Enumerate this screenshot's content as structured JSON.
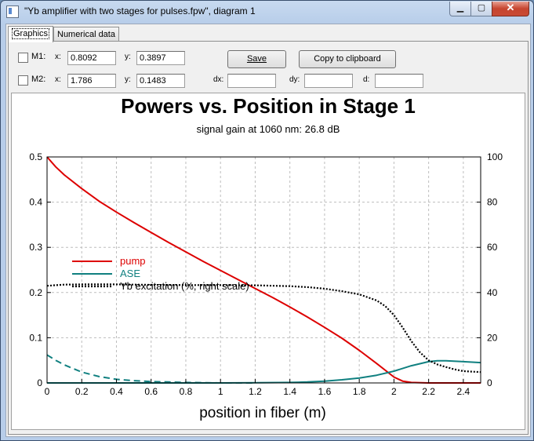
{
  "window": {
    "title": "\"Yb amplifier with two stages for pulses.fpw\", diagram 1",
    "minimize": "▁",
    "maximize": "▢",
    "close": "✕"
  },
  "tabs": [
    {
      "label": "Graphics",
      "active": true
    },
    {
      "label": "Numerical data",
      "active": false
    }
  ],
  "markers": {
    "m1": {
      "label": "M1:",
      "x_label": "x:",
      "x_value": "0.8092",
      "y_label": "y:",
      "y_value": "0.3897",
      "checked": false
    },
    "m2": {
      "label": "M2:",
      "x_label": "x:",
      "x_value": "1.786",
      "y_label": "y:",
      "y_value": "0.1483",
      "checked": false
    },
    "dx_label": "dx:",
    "dx_value": "",
    "dy_label": "dy:",
    "dy_value": "",
    "d_label": "d:",
    "d_value": ""
  },
  "buttons": {
    "save": "Save",
    "copy": "Copy to clipboard"
  },
  "chart_data": {
    "type": "line",
    "title": "Powers vs. Position in Stage 1",
    "subtitle": "signal gain at 1060 nm: 26.8 dB",
    "xlabel": "position in fiber (m)",
    "ylabel": "",
    "ylabel_right": "",
    "xlim": [
      0,
      2.5
    ],
    "ylim": [
      0,
      0.5
    ],
    "ylim_right": [
      0,
      100
    ],
    "x_ticks": [
      0,
      0.2,
      0.4,
      0.6,
      0.8,
      1,
      1.2,
      1.4,
      1.6,
      1.8,
      2,
      2.2,
      2.4
    ],
    "y_ticks": [
      0,
      0.1,
      0.2,
      0.3,
      0.4,
      0.5
    ],
    "y_ticks_right": [
      0,
      20,
      40,
      60,
      80,
      100
    ],
    "grid": true,
    "legend_position": "middle-left",
    "series": [
      {
        "name": "pump",
        "color": "#dd0000",
        "style": "solid",
        "axis": "left",
        "x": [
          0,
          0.05,
          0.1,
          0.2,
          0.3,
          0.4,
          0.5,
          0.6,
          0.7,
          0.8,
          0.9,
          1.0,
          1.1,
          1.2,
          1.3,
          1.4,
          1.5,
          1.6,
          1.7,
          1.8,
          1.9,
          2.0,
          2.05,
          2.1,
          2.2,
          2.3,
          2.4,
          2.5
        ],
        "y": [
          0.5,
          0.478,
          0.46,
          0.43,
          0.402,
          0.378,
          0.355,
          0.333,
          0.311,
          0.29,
          0.269,
          0.249,
          0.229,
          0.209,
          0.189,
          0.168,
          0.146,
          0.123,
          0.099,
          0.072,
          0.043,
          0.013,
          0.004,
          0.001,
          0,
          0,
          0,
          0
        ]
      },
      {
        "name": "ASE",
        "color": "#108080",
        "style": "solid",
        "axis": "left",
        "x": [
          0,
          0.5,
          1.0,
          1.2,
          1.4,
          1.5,
          1.6,
          1.7,
          1.8,
          1.9,
          2.0,
          2.1,
          2.2,
          2.25,
          2.3,
          2.4,
          2.5
        ],
        "y": [
          0,
          0,
          0,
          0.0005,
          0.001,
          0.002,
          0.004,
          0.007,
          0.011,
          0.017,
          0.026,
          0.038,
          0.047,
          0.049,
          0.049,
          0.047,
          0.045
        ]
      },
      {
        "name": "",
        "color": "#108080",
        "style": "dashed",
        "axis": "left",
        "x": [
          0,
          0.05,
          0.1,
          0.2,
          0.3,
          0.4,
          0.5,
          0.6,
          0.7,
          0.8,
          1.0,
          1.2
        ],
        "y": [
          0.062,
          0.05,
          0.04,
          0.024,
          0.014,
          0.008,
          0.005,
          0.003,
          0.002,
          0.001,
          0,
          0
        ]
      },
      {
        "name": "Yb excitation (%, right scale)",
        "color": "#000000",
        "style": "dotted",
        "axis": "right",
        "x": [
          0,
          0.1,
          0.2,
          0.4,
          0.6,
          0.8,
          1.0,
          1.2,
          1.4,
          1.5,
          1.6,
          1.7,
          1.8,
          1.9,
          1.95,
          2.0,
          2.05,
          2.1,
          2.15,
          2.2,
          2.25,
          2.3,
          2.35,
          2.4,
          2.5
        ],
        "y": [
          43,
          43.5,
          43.6,
          43.6,
          43.4,
          43.3,
          43.3,
          43.2,
          42.8,
          42.4,
          41.7,
          40.6,
          39.2,
          36.5,
          34,
          30,
          24.5,
          18.5,
          13.5,
          10,
          8.2,
          7,
          6,
          5.2,
          4.8
        ]
      }
    ]
  }
}
